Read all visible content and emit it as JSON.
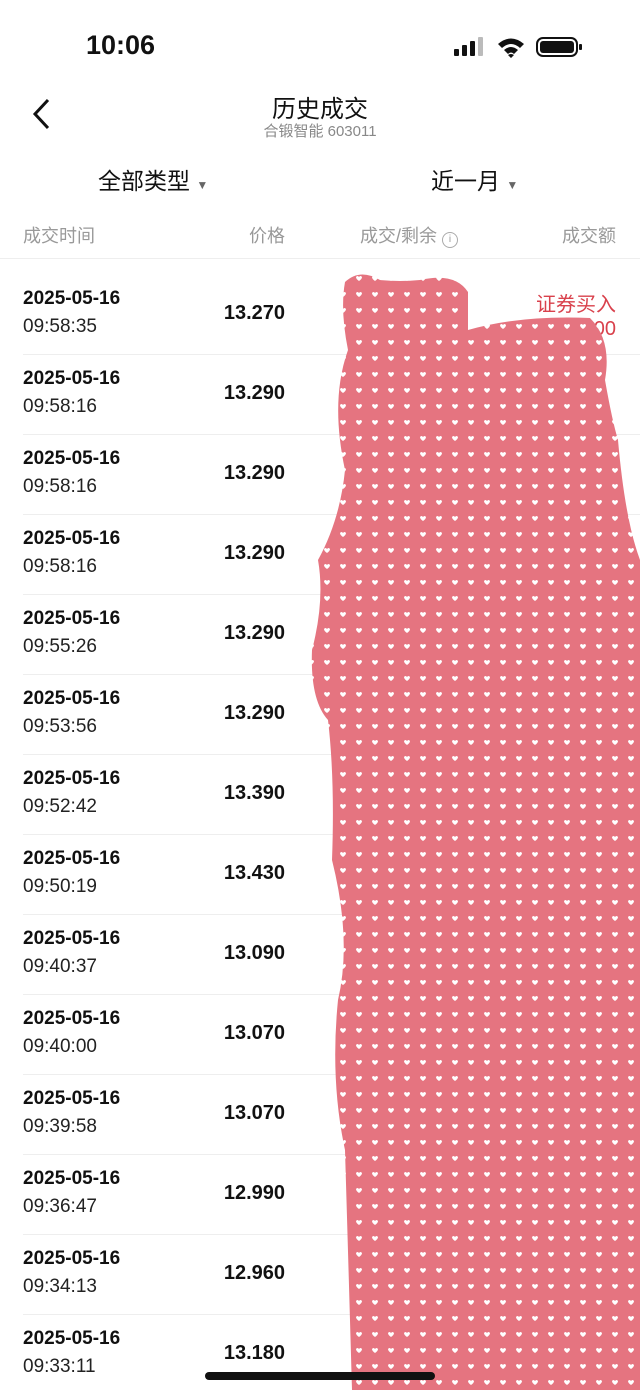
{
  "status_bar": {
    "time": "10:06"
  },
  "header": {
    "title": "历史成交",
    "subtitle": "合锻智能 603011"
  },
  "filters": [
    "全部类型",
    "近一月"
  ],
  "columns": [
    "成交时间",
    "价格",
    "成交/剩余",
    "成交额"
  ],
  "first_row_extra": {
    "type": "证券买入",
    "amount": "00"
  },
  "rows": [
    [
      "2025-05-16",
      "09:58:35",
      "13.270"
    ],
    [
      "2025-05-16",
      "09:58:16",
      "13.290"
    ],
    [
      "2025-05-16",
      "09:58:16",
      "13.290"
    ],
    [
      "2025-05-16",
      "09:58:16",
      "13.290"
    ],
    [
      "2025-05-16",
      "09:55:26",
      "13.290"
    ],
    [
      "2025-05-16",
      "09:53:56",
      "13.290"
    ],
    [
      "2025-05-16",
      "09:52:42",
      "13.390"
    ],
    [
      "2025-05-16",
      "09:50:19",
      "13.430"
    ],
    [
      "2025-05-16",
      "09:40:37",
      "13.090"
    ],
    [
      "2025-05-16",
      "09:40:00",
      "13.070"
    ],
    [
      "2025-05-16",
      "09:39:58",
      "13.070"
    ],
    [
      "2025-05-16",
      "09:36:47",
      "12.990"
    ],
    [
      "2025-05-16",
      "09:34:13",
      "12.960"
    ],
    [
      "2025-05-16",
      "09:33:11",
      "13.180"
    ]
  ]
}
